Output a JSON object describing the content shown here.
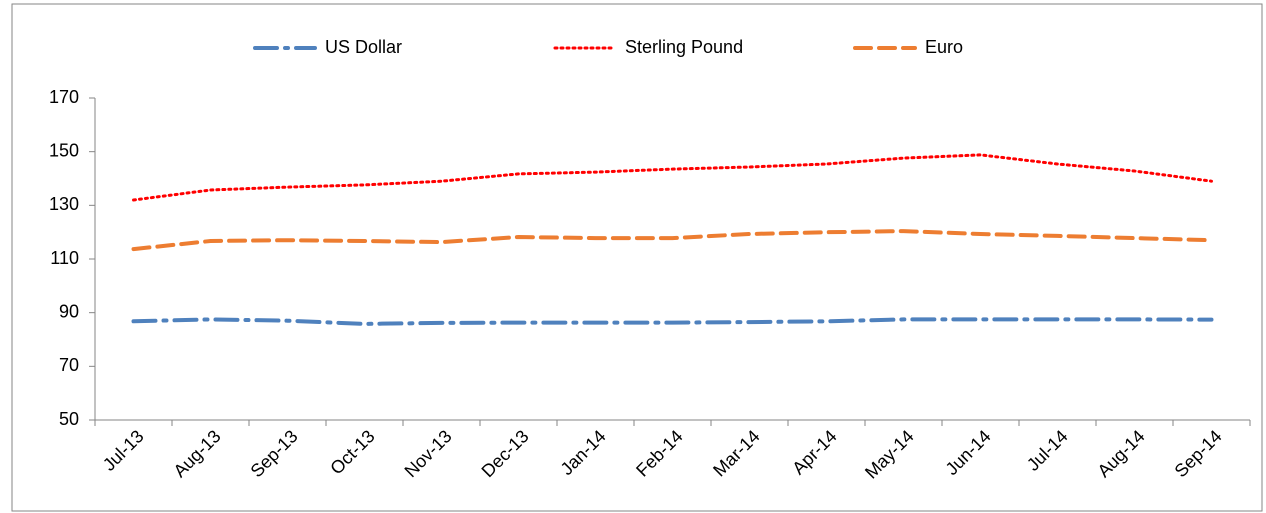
{
  "chart_data": {
    "type": "line",
    "categories": [
      "Jul-13",
      "Aug-13",
      "Sep-13",
      "Oct-13",
      "Nov-13",
      "Dec-13",
      "Jan-14",
      "Feb-14",
      "Mar-14",
      "Apr-14",
      "May-14",
      "Jun-14",
      "Jul-14",
      "Aug-14",
      "Sep-14"
    ],
    "series": [
      {
        "name": "US Dollar",
        "color": "#4f81bd",
        "dash": "dashdot",
        "values": [
          86.8,
          87.5,
          87,
          85.8,
          86.2,
          86.3,
          86.3,
          86.3,
          86.5,
          86.8,
          87.5,
          87.5,
          87.5,
          87.5,
          87.4
        ]
      },
      {
        "name": "Sterling Pound",
        "color": "#ff0000",
        "dash": "dot",
        "values": [
          132,
          135.7,
          136.8,
          137.6,
          139,
          141.7,
          142.4,
          143.5,
          144.3,
          145.4,
          147.6,
          148.8,
          145.4,
          142.8,
          139
        ]
      },
      {
        "name": "Euro",
        "color": "#ed7d31",
        "dash": "dash",
        "values": [
          113.7,
          116.7,
          117,
          116.7,
          116.3,
          118.2,
          117.8,
          117.8,
          119.3,
          120,
          120.4,
          119.3,
          118.6,
          117.8,
          117
        ]
      }
    ],
    "ylim": [
      50,
      170
    ],
    "yticks": [
      50,
      70,
      90,
      110,
      130,
      150,
      170
    ],
    "legend": "top",
    "grid": false
  }
}
